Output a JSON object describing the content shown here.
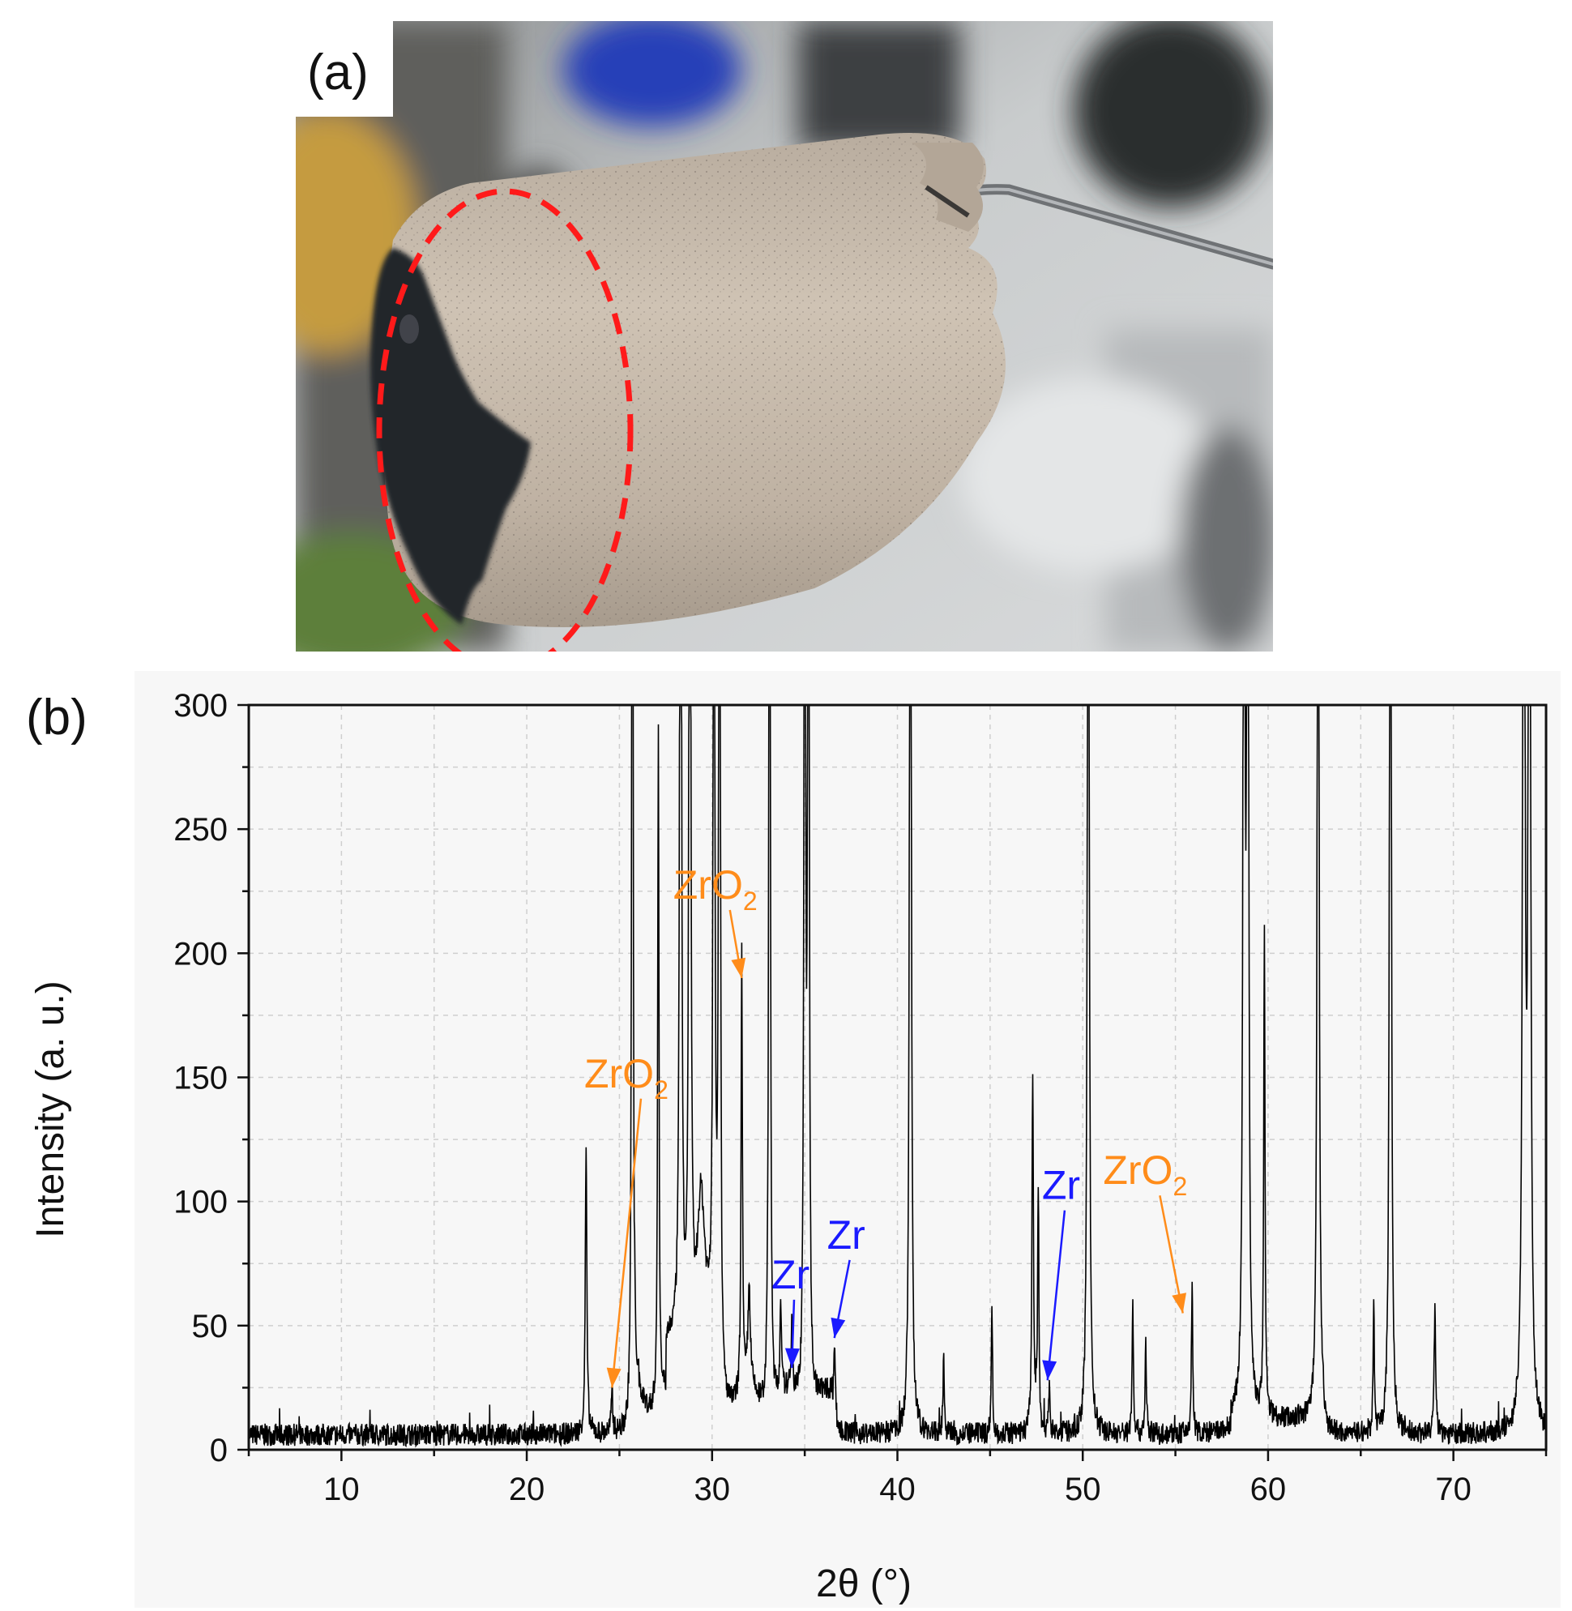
{
  "panel_a": {
    "label": "(a)"
  },
  "panel_b": {
    "label": "(b)"
  },
  "colors": {
    "orange": "#ff8c1a",
    "blue": "#1a1aff",
    "trace": "#000000",
    "highlight": "#ff1a1a"
  },
  "chart_data": {
    "type": "line",
    "title": "",
    "xlabel": "2θ (°)",
    "ylabel": "Intensity (a. u.)",
    "xlim": [
      5,
      75
    ],
    "ylim": [
      0,
      300
    ],
    "xticks": [
      10,
      20,
      30,
      40,
      50,
      60,
      70
    ],
    "yticks": [
      0,
      50,
      100,
      150,
      200,
      250,
      300
    ],
    "grid": true,
    "baseline": 6,
    "peaks": [
      [
        23.2,
        116,
        0.12
      ],
      [
        24.6,
        20,
        0.1
      ],
      [
        25.7,
        600,
        0.1
      ],
      [
        27.1,
        272,
        0.1
      ],
      [
        28.3,
        600,
        0.12
      ],
      [
        28.8,
        600,
        0.12
      ],
      [
        29.4,
        60,
        0.6
      ],
      [
        30.1,
        600,
        0.1
      ],
      [
        30.4,
        600,
        0.1
      ],
      [
        31.6,
        183,
        0.1
      ],
      [
        32.0,
        40,
        0.2
      ],
      [
        33.1,
        600,
        0.1
      ],
      [
        33.7,
        40,
        0.1
      ],
      [
        34.3,
        30,
        0.1
      ],
      [
        35.0,
        600,
        0.1
      ],
      [
        35.2,
        600,
        0.1
      ],
      [
        36.6,
        38,
        0.15
      ],
      [
        40.7,
        600,
        0.12
      ],
      [
        42.5,
        32,
        0.1
      ],
      [
        45.1,
        50,
        0.1
      ],
      [
        47.3,
        142,
        0.12
      ],
      [
        47.6,
        100,
        0.1
      ],
      [
        48.2,
        22,
        0.1
      ],
      [
        50.3,
        600,
        0.12
      ],
      [
        52.7,
        54,
        0.1
      ],
      [
        53.4,
        38,
        0.1
      ],
      [
        55.9,
        61,
        0.1
      ],
      [
        58.7,
        600,
        0.12
      ],
      [
        58.9,
        600,
        0.12
      ],
      [
        59.8,
        194,
        0.1
      ],
      [
        62.7,
        600,
        0.12
      ],
      [
        65.7,
        50,
        0.1
      ],
      [
        66.6,
        600,
        0.12
      ],
      [
        69.0,
        50,
        0.12
      ],
      [
        73.8,
        600,
        0.15
      ],
      [
        74.1,
        600,
        0.15
      ]
    ],
    "annotations": [
      {
        "text": "ZrO",
        "sub": "2",
        "color": "orange",
        "text_x": 23.1,
        "text_y": 146,
        "target_x": 24.6,
        "target_y": 25
      },
      {
        "text": "ZrO",
        "sub": "2",
        "color": "orange",
        "text_x": 27.9,
        "text_y": 222,
        "target_x": 31.6,
        "target_y": 190
      },
      {
        "text": "Zr",
        "color": "blue",
        "text_x": 33.2,
        "text_y": 65,
        "target_x": 34.3,
        "target_y": 33
      },
      {
        "text": "Zr",
        "color": "blue",
        "text_x": 36.2,
        "text_y": 81,
        "target_x": 36.6,
        "target_y": 45
      },
      {
        "text": "Zr",
        "color": "blue",
        "text_x": 47.8,
        "text_y": 101,
        "target_x": 48.1,
        "target_y": 28
      },
      {
        "text": "ZrO",
        "sub": "2",
        "color": "orange",
        "text_x": 51.1,
        "text_y": 107,
        "target_x": 55.4,
        "target_y": 55
      }
    ]
  }
}
